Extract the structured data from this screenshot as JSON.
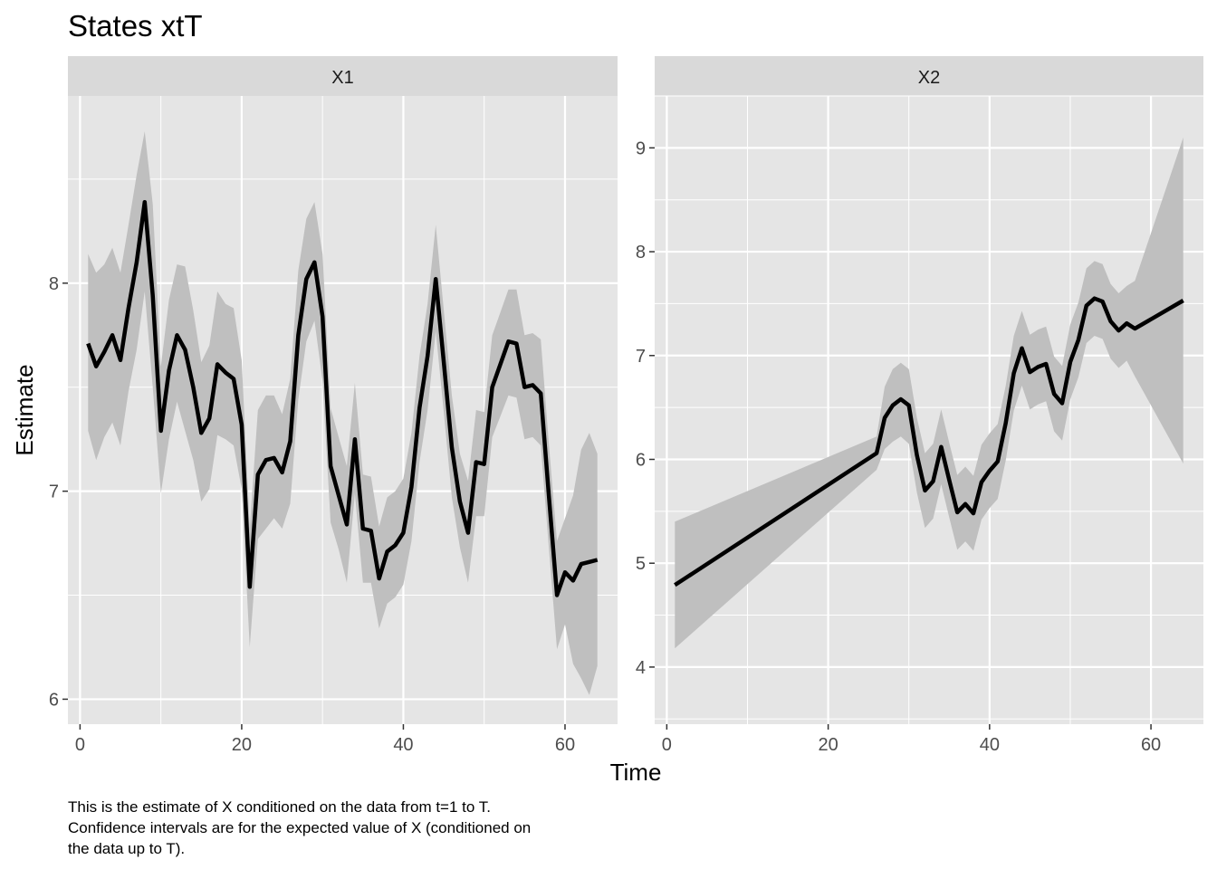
{
  "title": "States xtT",
  "caption": [
    "This is the estimate of X conditioned on the data from t=1 to T.",
    "Confidence intervals are for the expected value of X (conditioned on",
    "the data up to T)."
  ],
  "colors": {
    "panel_bg": "#e5e5e5",
    "strip_bg": "#d9d9d9",
    "grid": "#ffffff",
    "ribbon": "#bfbfbf",
    "line": "#000000",
    "tick": "#4d4d4d"
  },
  "chart_data": [
    {
      "type": "line",
      "panel": "X1",
      "xlabel": "Time",
      "ylabel": "Estimate",
      "xlim": [
        -1.5,
        66.5
      ],
      "ylim": [
        5.88,
        8.9
      ],
      "x_ticks": [
        0,
        20,
        40,
        60
      ],
      "y_ticks": [
        6,
        7,
        8
      ],
      "grid": true,
      "x": [
        1,
        2,
        3,
        4,
        5,
        6,
        7,
        8,
        9,
        10,
        11,
        12,
        13,
        14,
        15,
        16,
        17,
        18,
        19,
        20,
        21,
        22,
        23,
        24,
        25,
        26,
        27,
        28,
        29,
        30,
        31,
        32,
        33,
        34,
        35,
        36,
        37,
        38,
        39,
        40,
        41,
        42,
        43,
        44,
        45,
        46,
        47,
        48,
        49,
        50,
        51,
        52,
        53,
        54,
        55,
        56,
        57,
        58,
        59,
        60,
        61,
        62,
        63,
        64
      ],
      "y": [
        7.71,
        7.6,
        7.67,
        7.75,
        7.63,
        7.88,
        8.1,
        8.39,
        7.94,
        7.29,
        7.58,
        7.75,
        7.68,
        7.5,
        7.28,
        7.35,
        7.61,
        7.57,
        7.54,
        7.32,
        6.54,
        7.08,
        7.15,
        7.16,
        7.09,
        7.24,
        7.75,
        8.02,
        8.1,
        7.84,
        7.12,
        6.98,
        6.84,
        7.25,
        6.82,
        6.81,
        6.58,
        6.71,
        6.74,
        6.8,
        7.02,
        7.4,
        7.65,
        8.02,
        7.62,
        7.21,
        6.95,
        6.8,
        7.14,
        7.13,
        7.5,
        7.61,
        7.72,
        7.71,
        7.5,
        7.51,
        7.47,
        6.98,
        6.5,
        6.61,
        6.57,
        6.65,
        6.66,
        6.67
      ],
      "lower": [
        7.29,
        7.15,
        7.26,
        7.33,
        7.22,
        7.48,
        7.68,
        7.96,
        7.5,
        6.99,
        7.25,
        7.43,
        7.29,
        7.15,
        6.95,
        7.01,
        7.27,
        7.25,
        7.22,
        7.01,
        6.25,
        6.77,
        6.82,
        6.87,
        6.82,
        6.94,
        7.44,
        7.72,
        7.82,
        7.53,
        6.85,
        6.72,
        6.56,
        6.99,
        6.56,
        6.56,
        6.34,
        6.46,
        6.49,
        6.55,
        6.76,
        7.14,
        7.39,
        7.77,
        7.38,
        6.97,
        6.73,
        6.56,
        6.88,
        6.88,
        7.26,
        7.36,
        7.46,
        7.45,
        7.25,
        7.26,
        7.22,
        6.73,
        6.24,
        6.36,
        6.17,
        6.1,
        6.02,
        6.16
      ],
      "upper": [
        8.14,
        8.05,
        8.09,
        8.17,
        8.05,
        8.28,
        8.52,
        8.73,
        8.38,
        7.6,
        7.92,
        8.09,
        8.08,
        7.87,
        7.62,
        7.7,
        7.96,
        7.9,
        7.88,
        7.63,
        6.82,
        7.39,
        7.46,
        7.46,
        7.37,
        7.54,
        8.06,
        8.31,
        8.39,
        8.14,
        7.4,
        7.26,
        7.12,
        7.52,
        7.08,
        7.07,
        6.83,
        6.97,
        7.0,
        7.06,
        7.28,
        7.65,
        7.9,
        8.28,
        7.87,
        7.46,
        7.18,
        7.05,
        7.39,
        7.38,
        7.75,
        7.86,
        7.97,
        7.97,
        7.75,
        7.76,
        7.73,
        7.23,
        6.76,
        6.87,
        6.98,
        7.2,
        7.28,
        7.18
      ]
    },
    {
      "type": "line",
      "panel": "X2",
      "xlabel": "Time",
      "ylabel": "Estimate",
      "xlim": [
        -1.5,
        66.5
      ],
      "ylim": [
        3.45,
        9.5
      ],
      "x_ticks": [
        0,
        20,
        40,
        60
      ],
      "y_ticks": [
        4,
        5,
        6,
        7,
        8,
        9
      ],
      "grid": true,
      "x": [
        1,
        26,
        27,
        28,
        29,
        30,
        31,
        32,
        33,
        34,
        35,
        36,
        37,
        38,
        39,
        40,
        41,
        42,
        43,
        44,
        45,
        46,
        47,
        48,
        49,
        50,
        51,
        52,
        53,
        54,
        55,
        56,
        57,
        58,
        64
      ],
      "y": [
        4.79,
        6.06,
        6.4,
        6.52,
        6.58,
        6.52,
        6.04,
        5.7,
        5.79,
        6.12,
        5.8,
        5.49,
        5.57,
        5.48,
        5.78,
        5.89,
        5.98,
        6.35,
        6.83,
        7.07,
        6.84,
        6.89,
        6.92,
        6.63,
        6.54,
        6.94,
        7.15,
        7.48,
        7.55,
        7.52,
        7.33,
        7.24,
        7.31,
        7.26,
        7.53
      ],
      "lower": [
        4.18,
        5.9,
        6.1,
        6.17,
        6.22,
        6.15,
        5.68,
        5.34,
        5.43,
        5.76,
        5.44,
        5.13,
        5.21,
        5.12,
        5.42,
        5.53,
        5.62,
        5.99,
        6.47,
        6.71,
        6.48,
        6.53,
        6.56,
        6.27,
        6.18,
        6.58,
        6.79,
        7.12,
        7.19,
        7.16,
        6.97,
        6.88,
        6.95,
        6.8,
        5.96
      ],
      "upper": [
        5.4,
        6.22,
        6.7,
        6.87,
        6.93,
        6.87,
        6.4,
        6.06,
        6.15,
        6.48,
        6.16,
        5.85,
        5.93,
        5.84,
        6.14,
        6.25,
        6.34,
        6.71,
        7.19,
        7.43,
        7.2,
        7.25,
        7.28,
        6.99,
        6.9,
        7.3,
        7.51,
        7.84,
        7.91,
        7.88,
        7.69,
        7.6,
        7.67,
        7.72,
        9.1
      ]
    }
  ]
}
